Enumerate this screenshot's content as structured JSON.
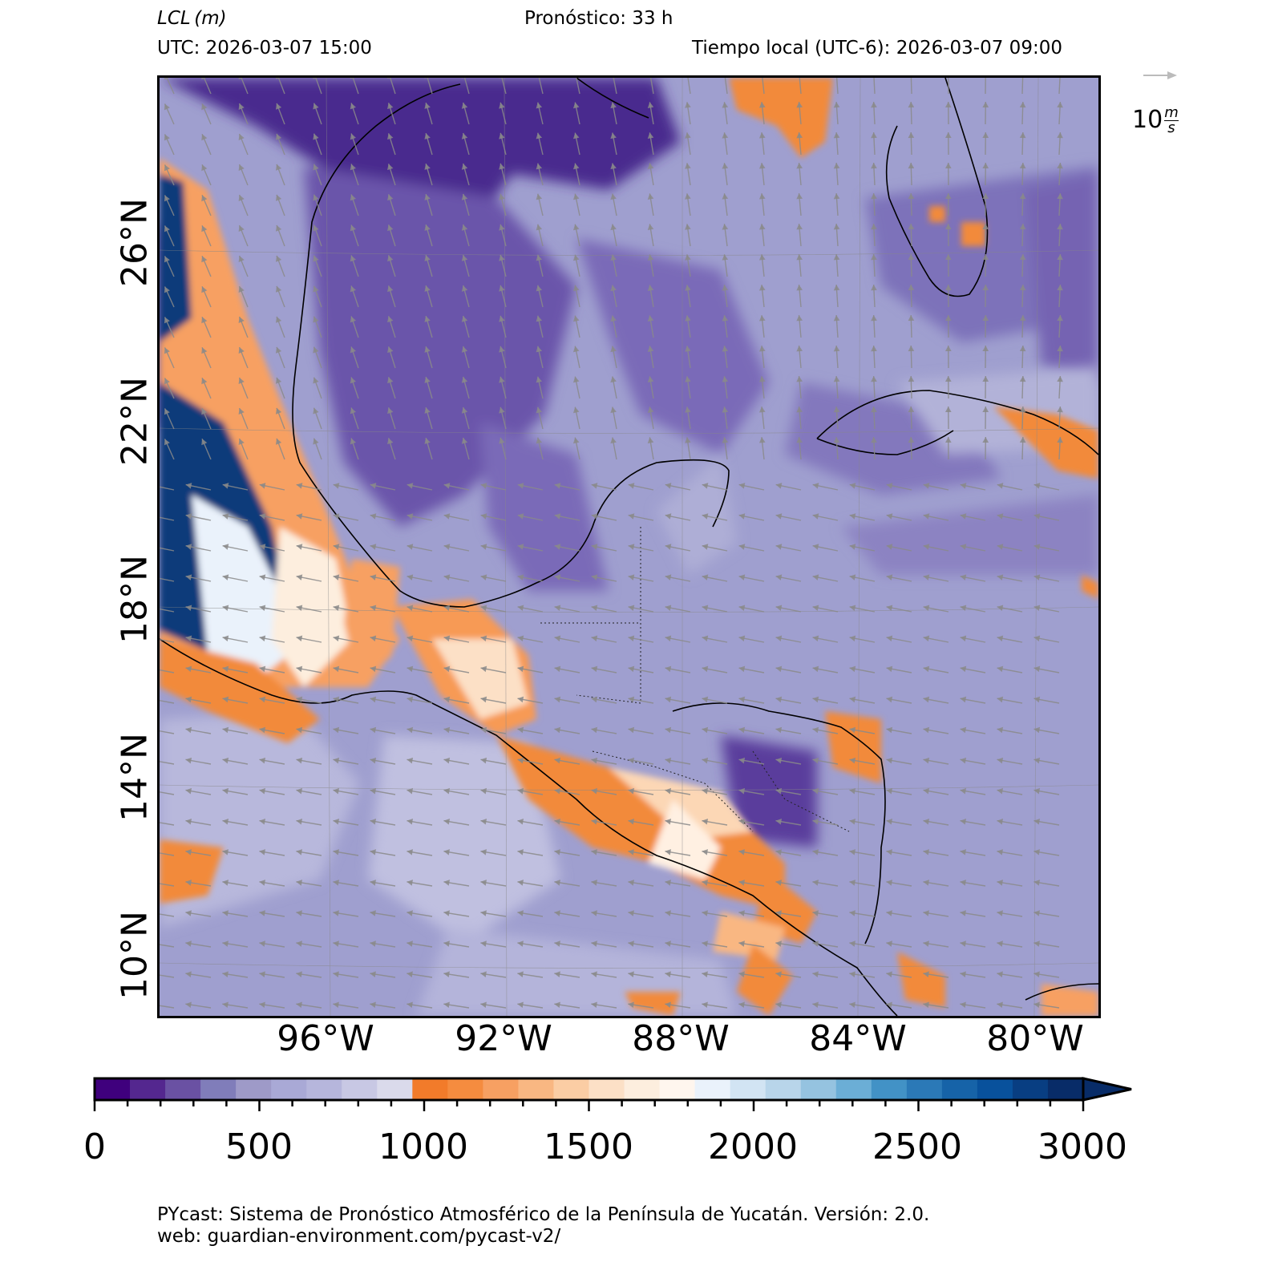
{
  "header": {
    "variable": "LCL",
    "units": "(m)",
    "forecast": "Pronóstico: 33 h",
    "utc": "UTC:  2026-03-07 15:00",
    "local": "Tiempo local (UTC-6): 2026-03-07 09:00"
  },
  "map": {
    "lat_labels": [
      "26°N",
      "22°N",
      "18°N",
      "14°N",
      "10°N"
    ],
    "lon_labels": [
      "96°W",
      "92°W",
      "88°W",
      "84°W",
      "80°W"
    ],
    "colors": {
      "ocean": "#9f9fcf",
      "ocean_dark": "#6a55aa",
      "ocean_darkest": "#4a2a8e",
      "ocean_light": "#c4c4e0",
      "orange": "#f28a3a",
      "orange_light": "#fcc9a0",
      "blue_dark": "#0d3a7a",
      "blue_light": "#6fa8d4"
    }
  },
  "wind_key": {
    "value": "10",
    "unit_num": "m",
    "unit_den": "s"
  },
  "colorbar": {
    "min": 0,
    "max": 3000,
    "ticks": [
      "0",
      "500",
      "1000",
      "1500",
      "2000",
      "2500",
      "3000"
    ],
    "colors": [
      "#3f007d",
      "#54278f",
      "#6a51a3",
      "#807dba",
      "#9e9ac8",
      "#a9a9d6",
      "#b6b6dc",
      "#c8c8e4",
      "#dadaeb",
      "#f27b2a",
      "#f58c3f",
      "#f7a062",
      "#f9b782",
      "#fbcda4",
      "#fce0c6",
      "#fdeede",
      "#fff6ee",
      "#eaf2fb",
      "#d2e4f3",
      "#b8d5ea",
      "#95c3e0",
      "#6baed6",
      "#4292c6",
      "#2b79b7",
      "#1663a8",
      "#08519c",
      "#083e82",
      "#082c68"
    ]
  },
  "footer": {
    "line1": "PYcast: Sistema de Pronóstico Atmosférico de la Península de Yucatán. Versión: 2.0.",
    "line2": "web: guardian-environment.com/pycast-v2/"
  }
}
